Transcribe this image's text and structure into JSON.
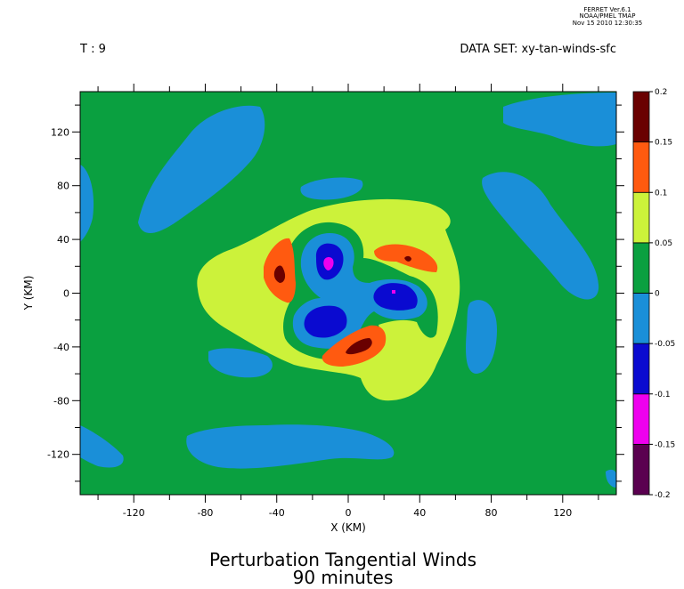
{
  "header": {
    "ferret_line1": "FERRET  Ver.6.1",
    "ferret_line2": "NOAA/PMEL TMAP",
    "ferret_line3": "Nov 15 2010 12:30:35",
    "time_label": "T : 9",
    "dataset_label": "DATA SET: xy-tan-winds-sfc"
  },
  "chart_data": {
    "type": "heatmap",
    "title": "Perturbation Tangential Winds",
    "subtitle": "90 minutes",
    "xlabel": "X (KM)",
    "ylabel": "Y (KM)",
    "xlim": [
      -150,
      150
    ],
    "ylim": [
      -150,
      150
    ],
    "x_ticks": [
      -120,
      -80,
      -40,
      0,
      40,
      80,
      120
    ],
    "y_ticks": [
      -120,
      -80,
      -40,
      0,
      40,
      80,
      120
    ],
    "colorbar": {
      "levels": [
        -0.2,
        -0.15,
        -0.1,
        -0.05,
        0,
        0.05,
        0.1,
        0.15,
        0.2
      ],
      "level_labels": [
        "-0.2",
        "-0.15",
        "-0.1",
        "-0.05",
        "0",
        "0.05",
        "0.1",
        "0.15",
        "0.2"
      ],
      "colors": [
        "#5a0050",
        "#ee00ee",
        "#0a0ad0",
        "#1a8fd8",
        "#0aa040",
        "#ccf23a",
        "#ff5a10",
        "#6a0000"
      ]
    },
    "background_color": "#0aa040"
  }
}
